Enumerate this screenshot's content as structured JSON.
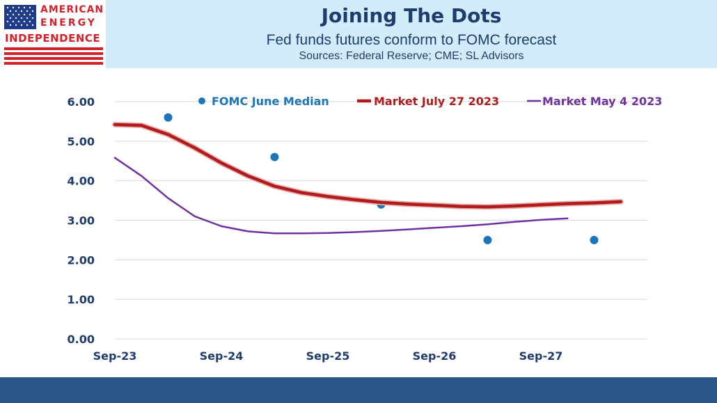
{
  "logo": {
    "line1": "AMERICAN",
    "line2": "ENERGY",
    "line3": "INDEPENDENCE",
    "colors": {
      "red": "#d2232a",
      "blue": "#1f3c8c"
    }
  },
  "header": {
    "title": "Joining The Dots",
    "subtitle": "Fed funds futures conform to FOMC forecast",
    "sources": "Sources: Federal Reserve; CME; SL Advisors"
  },
  "chart_data": {
    "type": "line",
    "title": "Joining The Dots",
    "xlabel": "",
    "ylabel": "",
    "ylim": [
      0,
      6
    ],
    "xlim": [
      2023.67,
      2028.67
    ],
    "grid": true,
    "legend_position": "top",
    "y_ticks": [
      "0.00",
      "1.00",
      "2.00",
      "3.00",
      "4.00",
      "5.00",
      "6.00"
    ],
    "x_ticks": [
      {
        "label": "Sep-23",
        "x": 2023.67
      },
      {
        "label": "Sep-24",
        "x": 2024.67
      },
      {
        "label": "Sep-25",
        "x": 2025.67
      },
      {
        "label": "Sep-26",
        "x": 2026.67
      },
      {
        "label": "Sep-27",
        "x": 2027.67
      }
    ],
    "series": [
      {
        "name": "FOMC June  Median",
        "kind": "scatter",
        "color": "#1b75bb",
        "points": [
          {
            "x": 2024.17,
            "y": 5.6
          },
          {
            "x": 2025.17,
            "y": 4.6
          },
          {
            "x": 2026.17,
            "y": 3.4
          },
          {
            "x": 2027.17,
            "y": 2.5
          },
          {
            "x": 2028.17,
            "y": 2.5
          }
        ]
      },
      {
        "name": "Market July 27 2023",
        "kind": "line",
        "color": "#b01b1b",
        "points": [
          {
            "x": 2023.67,
            "y": 5.42
          },
          {
            "x": 2023.92,
            "y": 5.4
          },
          {
            "x": 2024.17,
            "y": 5.17
          },
          {
            "x": 2024.42,
            "y": 4.83
          },
          {
            "x": 2024.67,
            "y": 4.45
          },
          {
            "x": 2024.92,
            "y": 4.12
          },
          {
            "x": 2025.17,
            "y": 3.86
          },
          {
            "x": 2025.42,
            "y": 3.7
          },
          {
            "x": 2025.67,
            "y": 3.6
          },
          {
            "x": 2025.92,
            "y": 3.52
          },
          {
            "x": 2026.17,
            "y": 3.45
          },
          {
            "x": 2026.42,
            "y": 3.41
          },
          {
            "x": 2026.67,
            "y": 3.38
          },
          {
            "x": 2026.92,
            "y": 3.35
          },
          {
            "x": 2027.17,
            "y": 3.34
          },
          {
            "x": 2027.42,
            "y": 3.36
          },
          {
            "x": 2027.67,
            "y": 3.39
          },
          {
            "x": 2027.92,
            "y": 3.42
          },
          {
            "x": 2028.17,
            "y": 3.44
          },
          {
            "x": 2028.42,
            "y": 3.47
          }
        ]
      },
      {
        "name": "Market May 4 2023",
        "kind": "line",
        "color": "#7030a0",
        "points": [
          {
            "x": 2023.67,
            "y": 4.58
          },
          {
            "x": 2023.92,
            "y": 4.12
          },
          {
            "x": 2024.17,
            "y": 3.56
          },
          {
            "x": 2024.42,
            "y": 3.1
          },
          {
            "x": 2024.67,
            "y": 2.85
          },
          {
            "x": 2024.92,
            "y": 2.72
          },
          {
            "x": 2025.17,
            "y": 2.67
          },
          {
            "x": 2025.42,
            "y": 2.67
          },
          {
            "x": 2025.67,
            "y": 2.68
          },
          {
            "x": 2025.92,
            "y": 2.7
          },
          {
            "x": 2026.17,
            "y": 2.73
          },
          {
            "x": 2026.42,
            "y": 2.77
          },
          {
            "x": 2026.67,
            "y": 2.81
          },
          {
            "x": 2026.92,
            "y": 2.85
          },
          {
            "x": 2027.17,
            "y": 2.9
          },
          {
            "x": 2027.42,
            "y": 2.96
          },
          {
            "x": 2027.67,
            "y": 3.01
          },
          {
            "x": 2027.92,
            "y": 3.05
          }
        ]
      }
    ]
  }
}
